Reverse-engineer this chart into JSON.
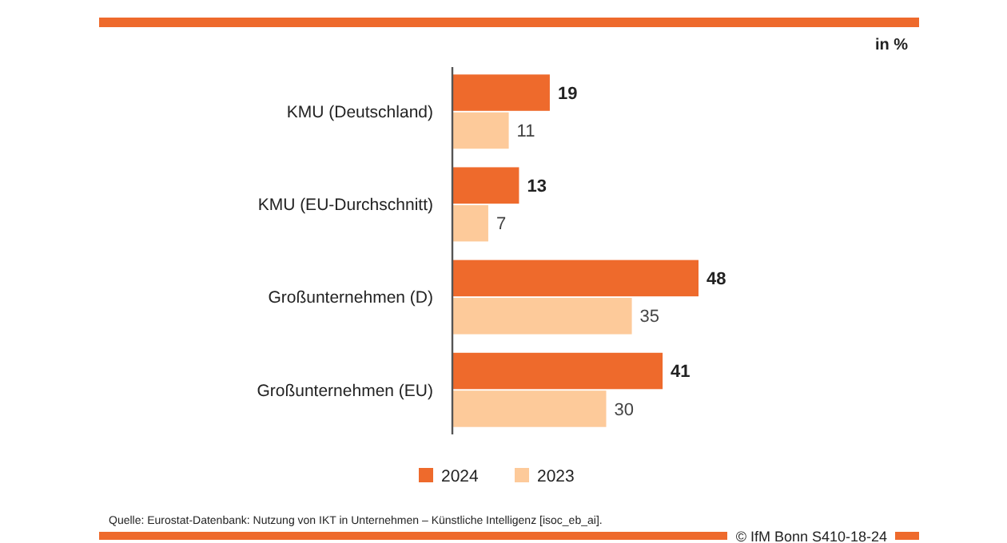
{
  "chart_data": {
    "type": "bar",
    "orientation": "horizontal",
    "categories": [
      "KMU (Deutschland)",
      "KMU (EU-Durchschnitt)",
      "Großunternehmen (D)",
      "Großunternehmen (EU)"
    ],
    "series": [
      {
        "name": "2024",
        "color": "#ee6a2c",
        "values": [
          19,
          13,
          48,
          41
        ]
      },
      {
        "name": "2023",
        "color": "#fdca9a",
        "values": [
          11,
          7,
          35,
          30
        ]
      }
    ],
    "data_labels": true,
    "legend": "bottom",
    "annotations": [
      "in %",
      "Quelle: Eurostat-Datenbank: Nutzung von IKT in Unternehmen – Künstliche Intelligenz [isoc_eb_ai].",
      "© IfM Bonn S410-18-24"
    ]
  }
}
